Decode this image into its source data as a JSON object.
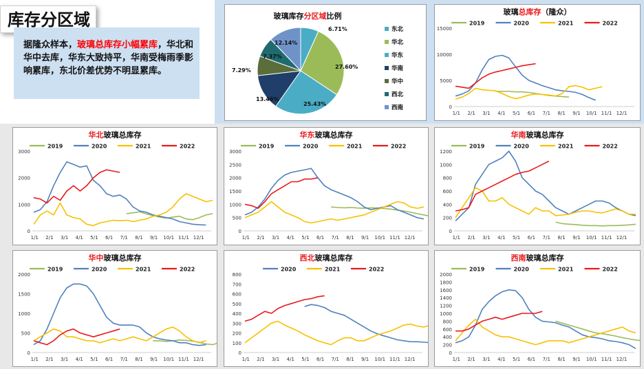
{
  "header": {
    "title": "库存分区域",
    "summary_parts": [
      {
        "text": "据隆众样本，",
        "red": false
      },
      {
        "text": "玻璃总库存小幅累库",
        "red": true
      },
      {
        "text": "，华北和华中去库，华东大致持平，华南受梅雨季影响累库，东北价差优势不明显累库。",
        "red": false
      }
    ]
  },
  "colors": {
    "y2019": "#9bbb59",
    "y2020": "#4f81bd",
    "y2021": "#f7c000",
    "y2022": "#e8191b",
    "highlight": "#e8191b"
  },
  "x_ticks": [
    "1/1",
    "2/1",
    "3/1",
    "4/1",
    "5/1",
    "6/1",
    "7/1",
    "8/1",
    "9/1",
    "10/1",
    "11/1",
    "12/1"
  ],
  "chart_data": [
    {
      "type": "pie",
      "id": "pie",
      "title_parts": [
        {
          "text": "玻璃库存",
          "red": false
        },
        {
          "text": "分区域",
          "red": true
        },
        {
          "text": "比例",
          "red": false
        }
      ],
      "slices": [
        {
          "label": "东北",
          "value": 6.71,
          "color": "#4bacc6"
        },
        {
          "label": "华北",
          "value": 27.6,
          "color": "#9bbb59"
        },
        {
          "label": "华东",
          "value": 25.43,
          "color": "#4bacc6"
        },
        {
          "label": "华南",
          "value": 13.46,
          "color": "#1f3f6a"
        },
        {
          "label": "华中",
          "value": 7.29,
          "color": "#5b6d3a"
        },
        {
          "label": "西北",
          "value": 7.37,
          "color": "#1f6b70"
        },
        {
          "label": "西南",
          "value": 12.14,
          "color": "#6f93c9"
        }
      ],
      "value_labels": [
        "6.71%",
        "27.60%",
        "25.43%",
        "13.46%",
        "7.29%",
        "7.37%",
        "12.14%"
      ]
    },
    {
      "type": "line",
      "id": "national",
      "title_parts": [
        {
          "text": "玻璃",
          "red": false
        },
        {
          "text": "总库存",
          "red": true
        },
        {
          "text": "（隆众）",
          "red": false
        }
      ],
      "ylim": [
        0,
        15000
      ],
      "yticks": [
        "0",
        "5000",
        "10000",
        "15000"
      ],
      "series": [
        {
          "name": "2019",
          "values": [
            null,
            null,
            null,
            null,
            null,
            null,
            2900,
            2900,
            2900,
            2800,
            2800,
            2700,
            2500,
            2300,
            2100,
            2000,
            1900,
            1800
          ]
        },
        {
          "name": "2020",
          "values": [
            2000,
            2400,
            3000,
            4500,
            7000,
            9000,
            9600,
            9800,
            9300,
            7600,
            6000,
            5000,
            4500,
            4000,
            3600,
            3200,
            3000,
            2900,
            2700,
            2300,
            1700,
            1200
          ]
        },
        {
          "name": "2021",
          "values": [
            1400,
            1800,
            2500,
            3500,
            3200,
            3100,
            3000,
            2500,
            1900,
            1500,
            1800,
            2200,
            2400,
            2300,
            2200,
            2000,
            2500,
            3800,
            4000,
            3700,
            3200,
            3500,
            3800
          ]
        },
        {
          "name": "2022",
          "values": [
            3900,
            3700,
            3500,
            4500,
            5500,
            6200,
            6600,
            6900,
            7200,
            7500,
            7800,
            8000,
            8200
          ]
        }
      ]
    },
    {
      "type": "line",
      "id": "huabei",
      "title_parts": [
        {
          "text": "华北",
          "red": true
        },
        {
          "text": "玻璃总库存",
          "red": false
        }
      ],
      "ylim": [
        0,
        3000
      ],
      "yticks": [
        "0",
        "1000",
        "2000",
        "3000"
      ],
      "series": [
        {
          "name": "2019",
          "values": [
            null,
            null,
            null,
            null,
            null,
            null,
            null,
            null,
            null,
            null,
            null,
            null,
            null,
            null,
            650,
            680,
            720,
            640,
            580,
            520,
            480,
            520,
            550,
            450,
            420,
            500,
            600,
            650
          ]
        },
        {
          "name": "2020",
          "values": [
            700,
            800,
            1100,
            1700,
            2200,
            2600,
            2500,
            2400,
            2450,
            1900,
            1700,
            1400,
            1300,
            1350,
            1200,
            900,
            750,
            700,
            600,
            550,
            500,
            450,
            350,
            300,
            250,
            230,
            220
          ]
        },
        {
          "name": "2021",
          "values": [
            250,
            600,
            750,
            600,
            1050,
            600,
            500,
            450,
            250,
            200,
            300,
            350,
            400,
            380,
            400,
            350,
            400,
            450,
            550,
            600,
            700,
            900,
            1200,
            1400,
            1300,
            1200,
            1100,
            1150
          ]
        },
        {
          "name": "2022",
          "values": [
            1250,
            1200,
            1050,
            1300,
            1150,
            1500,
            1700,
            1500,
            1700,
            2000,
            2200,
            2300,
            2250,
            2200
          ]
        }
      ]
    },
    {
      "type": "line",
      "id": "huadong",
      "title_parts": [
        {
          "text": "华东",
          "red": true
        },
        {
          "text": "玻璃总库存",
          "red": false
        }
      ],
      "ylim": [
        0,
        3000
      ],
      "yticks": [
        "0",
        "500",
        "1000",
        "1500",
        "2000",
        "2500",
        "3000"
      ],
      "series": [
        {
          "name": "2019",
          "values": [
            null,
            null,
            null,
            null,
            null,
            null,
            null,
            null,
            null,
            null,
            null,
            null,
            null,
            900,
            880,
            870,
            880,
            860,
            850,
            870,
            860,
            840,
            820,
            780,
            750,
            700,
            650,
            600,
            550
          ]
        },
        {
          "name": "2020",
          "values": [
            600,
            700,
            900,
            1200,
            1600,
            1900,
            2100,
            2200,
            2250,
            2300,
            2350,
            2000,
            1700,
            1550,
            1450,
            1350,
            1250,
            1100,
            900,
            800,
            850,
            900,
            950,
            800,
            700,
            600,
            500,
            450
          ]
        },
        {
          "name": "2021",
          "values": [
            500,
            600,
            700,
            900,
            1100,
            900,
            700,
            600,
            500,
            350,
            300,
            350,
            400,
            450,
            400,
            450,
            500,
            550,
            600,
            700,
            800,
            900,
            1000,
            1100,
            1050,
            900,
            850,
            900
          ]
        },
        {
          "name": "2022",
          "values": [
            1000,
            950,
            850,
            1100,
            1400,
            1550,
            1700,
            1850,
            1850,
            1950,
            1950,
            2000
          ]
        }
      ]
    },
    {
      "type": "line",
      "id": "huanan",
      "title_parts": [
        {
          "text": "华南",
          "red": true
        },
        {
          "text": "玻璃总库存",
          "red": false
        }
      ],
      "ylim": [
        0,
        1200
      ],
      "yticks": [
        "0",
        "200",
        "400",
        "600",
        "800",
        "1000",
        "1200"
      ],
      "series": [
        {
          "name": "2019",
          "values": [
            null,
            null,
            null,
            null,
            null,
            null,
            null,
            null,
            null,
            null,
            null,
            null,
            null,
            null,
            null,
            130,
            110,
            100,
            95,
            85,
            80,
            80,
            75,
            80,
            80,
            85,
            90,
            100
          ]
        },
        {
          "name": "2020",
          "values": [
            150,
            250,
            350,
            700,
            850,
            1000,
            1050,
            1100,
            1200,
            1050,
            800,
            700,
            600,
            550,
            450,
            350,
            300,
            250,
            300,
            350,
            400,
            450,
            450,
            420,
            350,
            300,
            250,
            230
          ]
        },
        {
          "name": "2021",
          "values": [
            200,
            350,
            500,
            650,
            600,
            450,
            450,
            500,
            400,
            350,
            300,
            250,
            350,
            300,
            300,
            230,
            240,
            250,
            280,
            300,
            300,
            280,
            270,
            300,
            330,
            300,
            250,
            250
          ]
        },
        {
          "name": "2022",
          "values": [
            300,
            320,
            350,
            550,
            600,
            650,
            700,
            750,
            800,
            850,
            880,
            900,
            950,
            1000,
            1050
          ]
        }
      ]
    },
    {
      "type": "line",
      "id": "huazhong",
      "title_parts": [
        {
          "text": "华中",
          "red": true
        },
        {
          "text": "玻璃总库存",
          "red": false
        }
      ],
      "ylim": [
        0,
        2000
      ],
      "yticks": [
        "0",
        "500",
        "1000",
        "1500",
        "2000"
      ],
      "series": [
        {
          "name": "2019",
          "values": [
            null,
            null,
            null,
            null,
            null,
            null,
            null,
            null,
            null,
            null,
            null,
            null,
            null,
            null,
            null,
            null,
            null,
            null,
            300,
            300,
            280,
            300,
            320,
            310,
            290,
            260,
            220,
            200,
            250
          ]
        },
        {
          "name": "2020",
          "values": [
            200,
            300,
            600,
            1000,
            1400,
            1650,
            1750,
            1750,
            1700,
            1500,
            1200,
            900,
            750,
            700,
            700,
            700,
            650,
            500,
            400,
            350,
            320,
            300,
            250,
            250,
            200,
            180,
            200
          ]
        },
        {
          "name": "2021",
          "values": [
            300,
            400,
            500,
            600,
            550,
            400,
            400,
            350,
            300,
            300,
            250,
            300,
            350,
            300,
            350,
            400,
            350,
            300,
            400,
            500,
            600,
            650,
            550,
            400,
            300,
            250,
            300
          ]
        },
        {
          "name": "2022",
          "values": [
            300,
            250,
            200,
            300,
            450,
            550,
            600,
            500,
            450,
            400,
            450,
            500,
            550,
            600
          ]
        }
      ]
    },
    {
      "type": "line",
      "id": "xibei",
      "title_parts": [
        {
          "text": "西北",
          "red": true
        },
        {
          "text": "玻璃总库存",
          "red": false
        }
      ],
      "ylim": [
        0,
        800
      ],
      "yticks": [
        "0",
        "100",
        "200",
        "300",
        "400",
        "500",
        "600",
        "700",
        "800"
      ],
      "series": [
        {
          "name": "2020",
          "values": [
            null,
            null,
            null,
            null,
            null,
            null,
            null,
            null,
            null,
            470,
            490,
            480,
            460,
            420,
            400,
            380,
            340,
            300,
            260,
            220,
            190,
            170,
            150,
            130,
            120,
            110,
            110,
            105,
            100
          ]
        },
        {
          "name": "2021",
          "values": [
            100,
            150,
            200,
            250,
            300,
            320,
            280,
            250,
            220,
            180,
            150,
            120,
            100,
            80,
            120,
            150,
            150,
            120,
            120,
            150,
            180,
            200,
            220,
            250,
            280,
            290,
            270,
            260,
            280
          ]
        },
        {
          "name": "2022",
          "values": [
            320,
            340,
            380,
            420,
            400,
            450,
            480,
            500,
            520,
            540,
            550,
            570,
            580
          ]
        }
      ]
    },
    {
      "type": "line",
      "id": "xinan",
      "title_parts": [
        {
          "text": "西南",
          "red": true
        },
        {
          "text": "玻璃总库存",
          "red": false
        }
      ],
      "ylim": [
        0,
        2000
      ],
      "yticks": [
        "0",
        "200",
        "400",
        "600",
        "800",
        "1000",
        "1200",
        "1400",
        "1600",
        "1800",
        "2000"
      ],
      "series": [
        {
          "name": "2019",
          "values": [
            null,
            null,
            null,
            null,
            null,
            null,
            null,
            null,
            null,
            null,
            null,
            null,
            null,
            null,
            null,
            800,
            750,
            700,
            650,
            600,
            550,
            500,
            480,
            450,
            420,
            380,
            350,
            320,
            300
          ]
        },
        {
          "name": "2020",
          "values": [
            250,
            300,
            400,
            700,
            1100,
            1300,
            1450,
            1550,
            1600,
            1580,
            1400,
            1100,
            900,
            800,
            780,
            760,
            700,
            650,
            550,
            450,
            400,
            380,
            350,
            300,
            280,
            250,
            200,
            100
          ]
        },
        {
          "name": "2021",
          "values": [
            300,
            500,
            700,
            850,
            650,
            550,
            450,
            400,
            400,
            350,
            300,
            250,
            200,
            250,
            300,
            300,
            300,
            250,
            300,
            350,
            400,
            450,
            500,
            550,
            600,
            650,
            550,
            500
          ]
        },
        {
          "name": "2022",
          "values": [
            550,
            550,
            600,
            700,
            800,
            850,
            900,
            850,
            900,
            950,
            1000,
            1000,
            1000,
            1050
          ]
        }
      ]
    }
  ]
}
